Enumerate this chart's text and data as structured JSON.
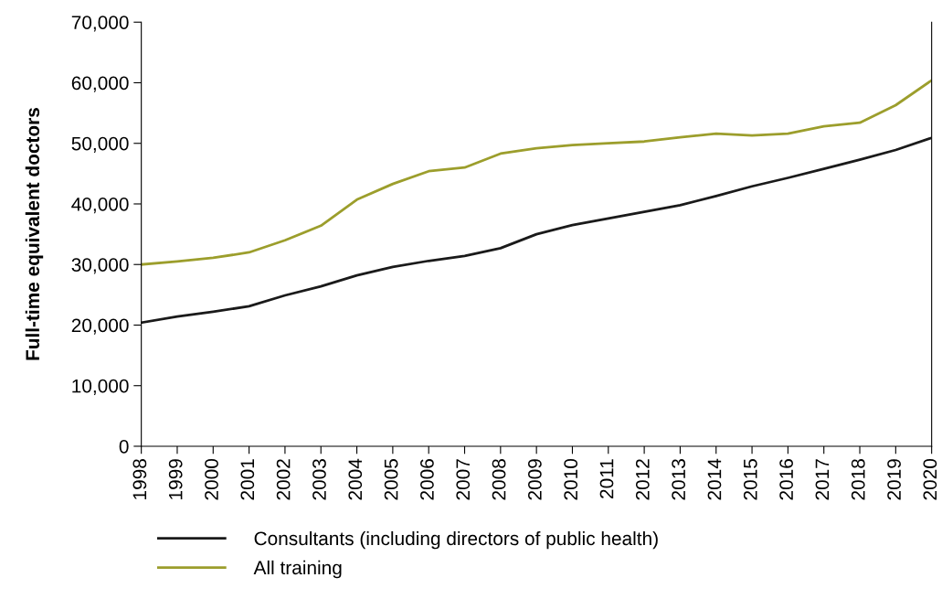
{
  "chart_data": {
    "type": "line",
    "ylabel": "Full-time equivalent doctors",
    "x": [
      1998,
      1999,
      2000,
      2001,
      2002,
      2003,
      2004,
      2005,
      2006,
      2007,
      2008,
      2009,
      2010,
      2011,
      2012,
      2013,
      2014,
      2015,
      2016,
      2017,
      2018,
      2019,
      2020
    ],
    "series": [
      {
        "name": "Consultants (including directors of public health)",
        "color": "#1a1a1a",
        "values": [
          20400,
          21400,
          22200,
          23100,
          24900,
          26400,
          28200,
          29600,
          30600,
          31400,
          32700,
          35000,
          36500,
          37600,
          38700,
          39800,
          41300,
          42900,
          44300,
          45800,
          47300,
          48900,
          50900
        ]
      },
      {
        "name": "All training",
        "color": "#9c9e2c",
        "values": [
          30000,
          30500,
          31100,
          32000,
          34000,
          36400,
          40700,
          43300,
          45400,
          46000,
          48300,
          49200,
          49700,
          50000,
          50300,
          51000,
          51600,
          51300,
          51600,
          52800,
          53400,
          56300,
          60400
        ]
      }
    ],
    "xlim": [
      1998,
      2020
    ],
    "xticks": [
      1998,
      1999,
      2000,
      2001,
      2002,
      2003,
      2004,
      2005,
      2006,
      2007,
      2008,
      2009,
      2010,
      2011,
      2012,
      2013,
      2014,
      2015,
      2016,
      2017,
      2018,
      2019,
      2020
    ],
    "ylim": [
      0,
      70000
    ],
    "yticks": [
      0,
      {
        "value": 10000,
        "label": "10,000"
      },
      {
        "value": 20000,
        "label": "20,000"
      },
      {
        "value": 30000,
        "label": "30,000"
      },
      {
        "value": 40000,
        "label": "40,000"
      },
      {
        "value": 50000,
        "label": "50,000"
      },
      {
        "value": 60000,
        "label": "60,000"
      },
      {
        "value": 70000,
        "label": "70,000"
      }
    ],
    "grid": false,
    "legend": "bottom",
    "marker": "none",
    "line_style": "solid"
  }
}
